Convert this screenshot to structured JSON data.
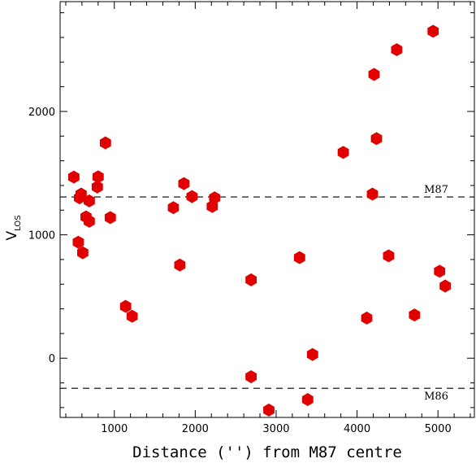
{
  "chart_data": {
    "type": "scatter",
    "xlabel": "Distance ('') from M87 centre",
    "ylabel": "V",
    "ylabel_subscript": "LOS",
    "xlim": [
      330,
      5450
    ],
    "ylim": [
      -480,
      2890
    ],
    "x_ticks": [
      1000,
      2000,
      3000,
      4000,
      5000
    ],
    "y_ticks": [
      0,
      1000,
      2000
    ],
    "grid": false,
    "marker_color": "#e00000",
    "reference_lines": [
      {
        "label": "M87",
        "y": 1307
      },
      {
        "label": "M86",
        "y": -244
      }
    ],
    "points": [
      {
        "x": 500,
        "y": 1468
      },
      {
        "x": 555,
        "y": 940
      },
      {
        "x": 570,
        "y": 1300
      },
      {
        "x": 590,
        "y": 1330
      },
      {
        "x": 610,
        "y": 855
      },
      {
        "x": 650,
        "y": 1145
      },
      {
        "x": 690,
        "y": 1110
      },
      {
        "x": 690,
        "y": 1275
      },
      {
        "x": 790,
        "y": 1388
      },
      {
        "x": 800,
        "y": 1470
      },
      {
        "x": 890,
        "y": 1745
      },
      {
        "x": 950,
        "y": 1140
      },
      {
        "x": 1140,
        "y": 420
      },
      {
        "x": 1220,
        "y": 340
      },
      {
        "x": 1730,
        "y": 1220
      },
      {
        "x": 1810,
        "y": 755
      },
      {
        "x": 1860,
        "y": 1415
      },
      {
        "x": 1960,
        "y": 1310
      },
      {
        "x": 2210,
        "y": 1230
      },
      {
        "x": 2240,
        "y": 1300
      },
      {
        "x": 2690,
        "y": 635
      },
      {
        "x": 2690,
        "y": -150
      },
      {
        "x": 2910,
        "y": -420
      },
      {
        "x": 3290,
        "y": 815
      },
      {
        "x": 3390,
        "y": -335
      },
      {
        "x": 3450,
        "y": 30
      },
      {
        "x": 3830,
        "y": 1668
      },
      {
        "x": 4120,
        "y": 325
      },
      {
        "x": 4190,
        "y": 1330
      },
      {
        "x": 4210,
        "y": 2300
      },
      {
        "x": 4240,
        "y": 1780
      },
      {
        "x": 4390,
        "y": 830
      },
      {
        "x": 4490,
        "y": 2500
      },
      {
        "x": 4710,
        "y": 350
      },
      {
        "x": 4940,
        "y": 2650
      },
      {
        "x": 5020,
        "y": 705
      },
      {
        "x": 5090,
        "y": 585
      }
    ]
  }
}
